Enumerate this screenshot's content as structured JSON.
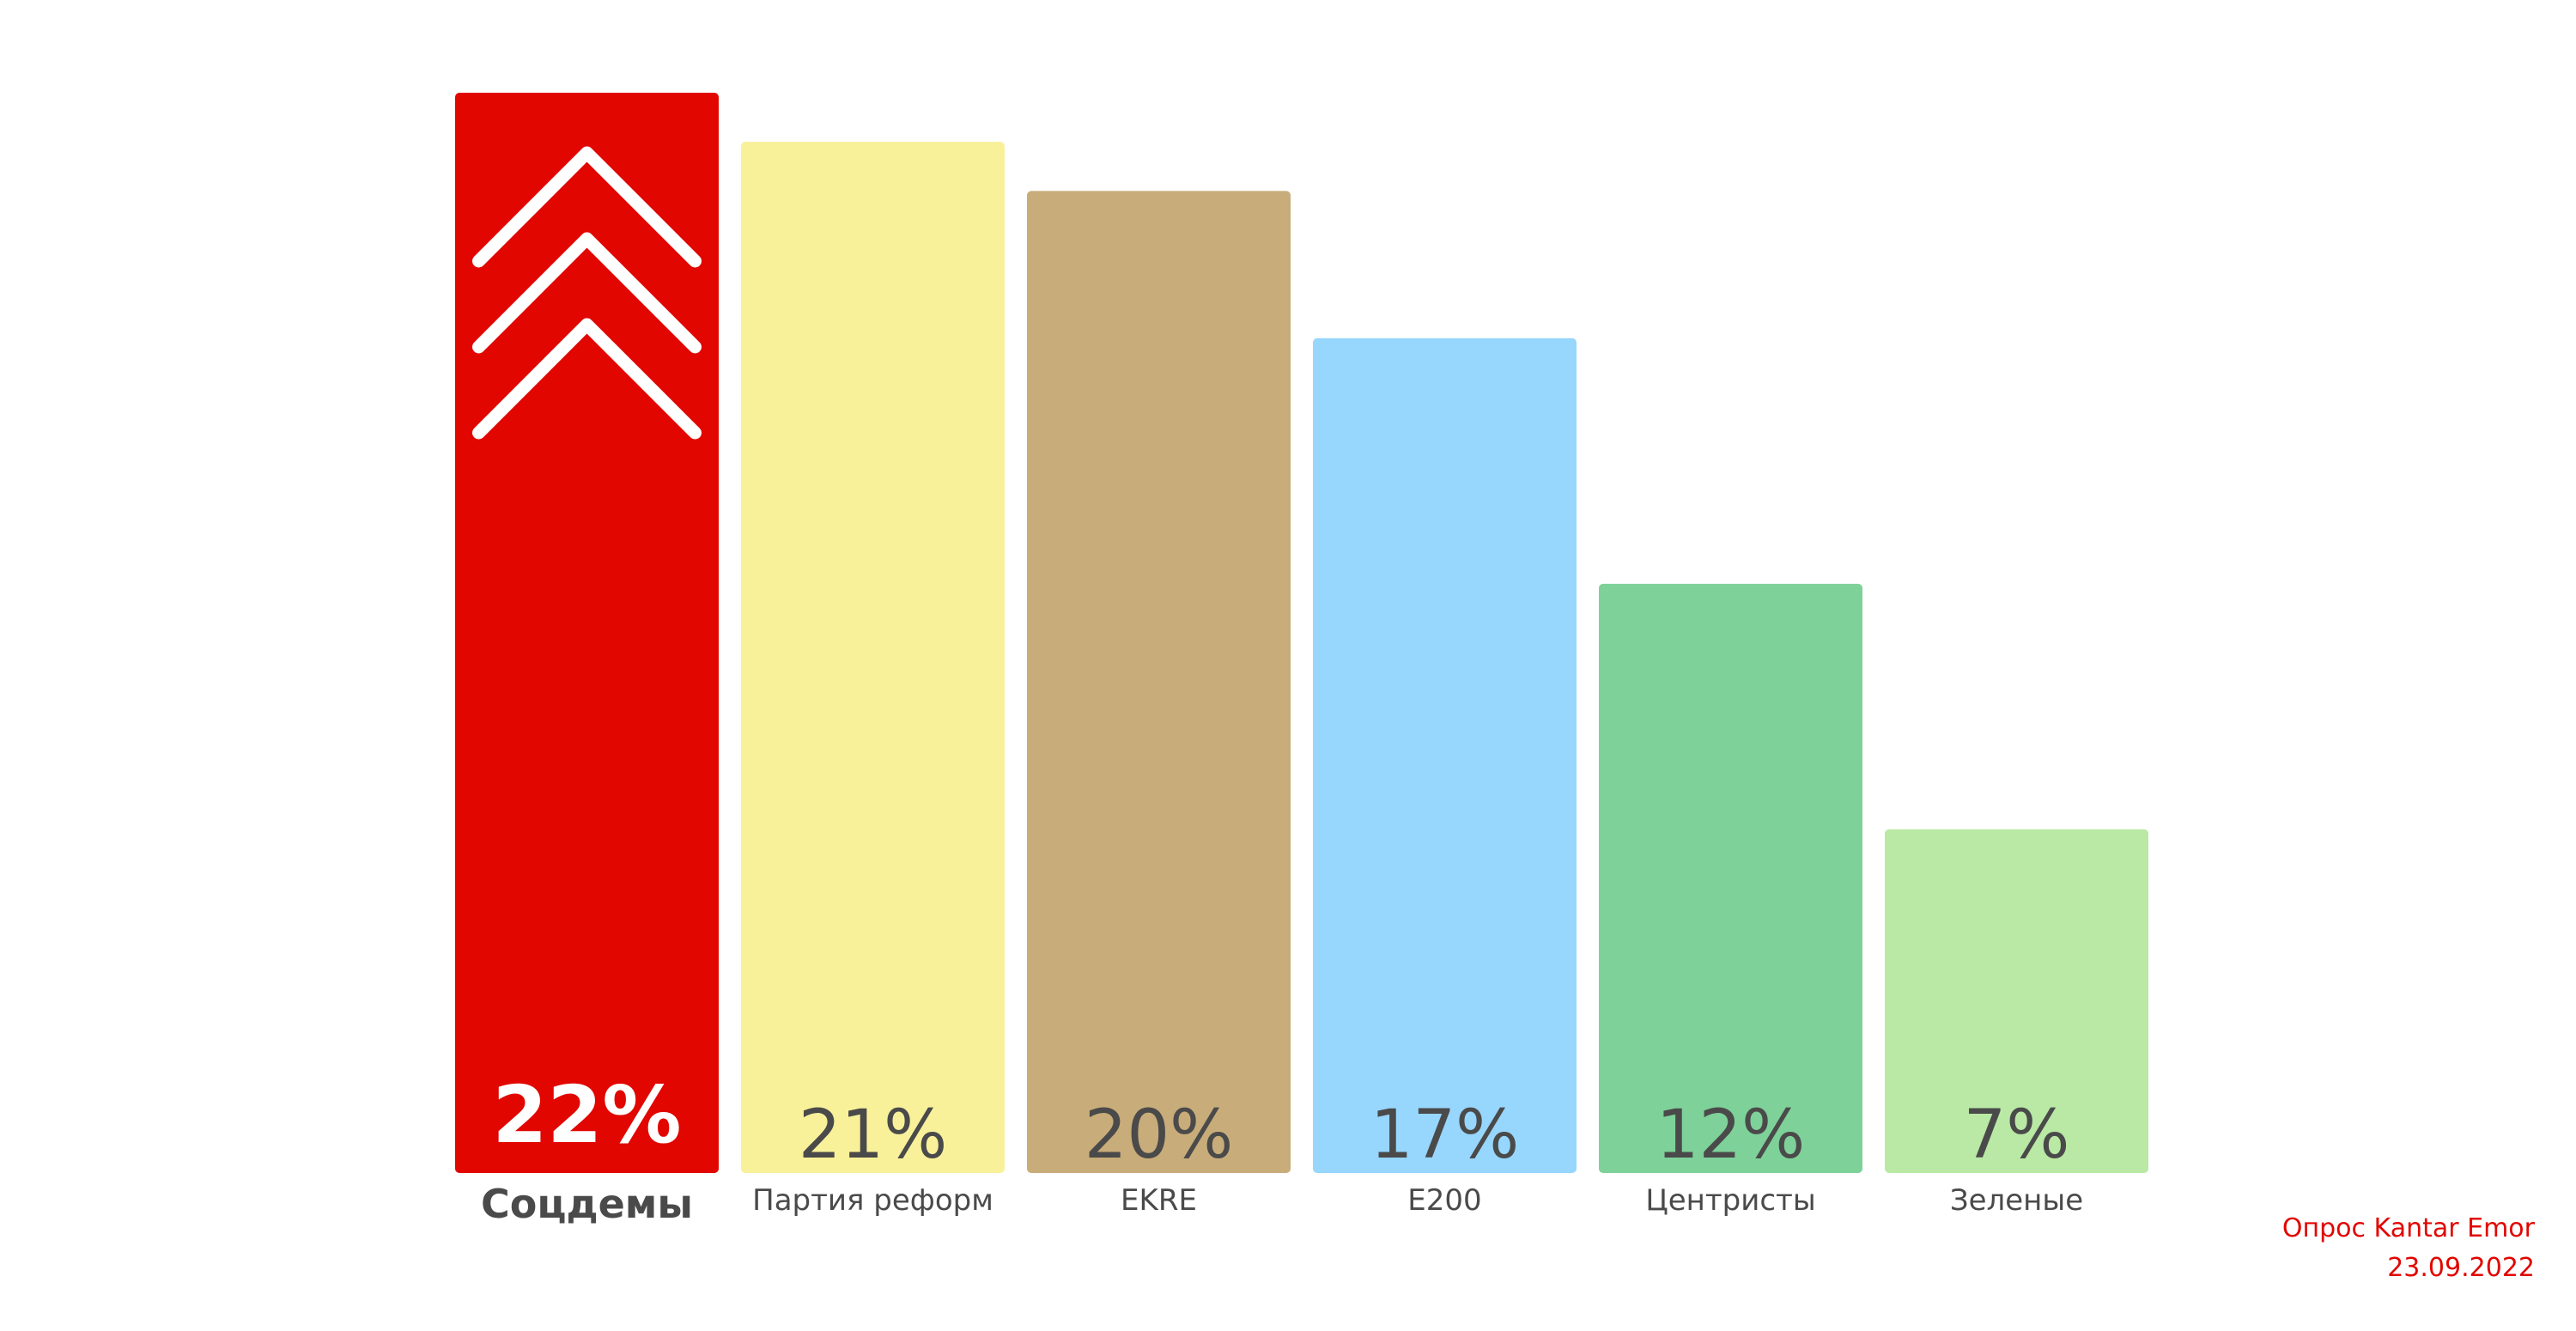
{
  "chart_data": {
    "type": "bar",
    "categories": [
      "Соцдемы",
      "Партия реформ",
      "EKRE",
      "E200",
      "Центристы",
      "Зеленые"
    ],
    "values": [
      22,
      21,
      20,
      17,
      12,
      7
    ],
    "value_labels": [
      "22%",
      "21%",
      "20%",
      "17%",
      "12%",
      "7%"
    ],
    "colors": [
      "#e10600",
      "#f8f19a",
      "#c8ac7a",
      "#97d6fd",
      "#7ed199",
      "#b9e9a4"
    ],
    "label_colors": [
      "#ffffff",
      "#4a4a4a",
      "#4a4a4a",
      "#4a4a4a",
      "#4a4a4a",
      "#4a4a4a"
    ],
    "highlight_icon": "triple-chevron-up-icon",
    "ylim": [
      0,
      22
    ],
    "grid": false
  },
  "source": {
    "line1": "Опрос Kantar Emor",
    "line2": "23.09.2022"
  }
}
